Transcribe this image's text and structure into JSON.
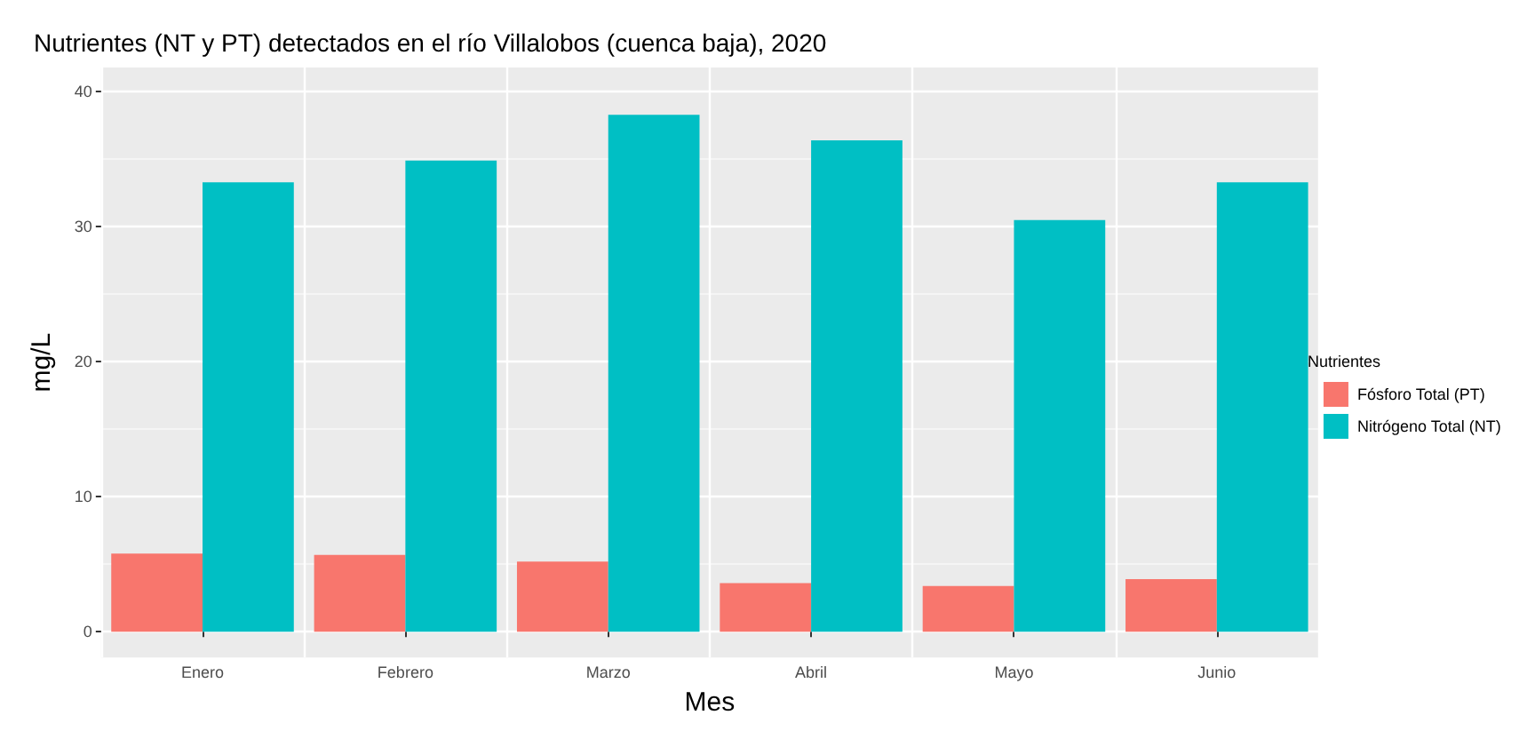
{
  "chart_data": {
    "type": "bar",
    "title": "Nutrientes (NT y PT) detectados en el río Villalobos (cuenca baja), 2020",
    "xlabel": "Mes",
    "ylabel": "mg/L",
    "legend_title": "Nutrientes",
    "categories": [
      "Enero",
      "Febrero",
      "Marzo",
      "Abril",
      "Mayo",
      "Junio"
    ],
    "series": [
      {
        "name": "Fósforo Total (PT)",
        "color": "#f8766d",
        "values": [
          5.8,
          5.7,
          5.2,
          3.6,
          3.4,
          3.9
        ]
      },
      {
        "name": "Nitrógeno Total (NT)",
        "color": "#00bfc4",
        "values": [
          33.3,
          34.9,
          38.3,
          36.4,
          30.5,
          33.3
        ]
      }
    ],
    "ylim": [
      -1.9,
      41.8
    ],
    "yticks": [
      0,
      10,
      20,
      30,
      40
    ],
    "grid": true,
    "legend": "right"
  }
}
